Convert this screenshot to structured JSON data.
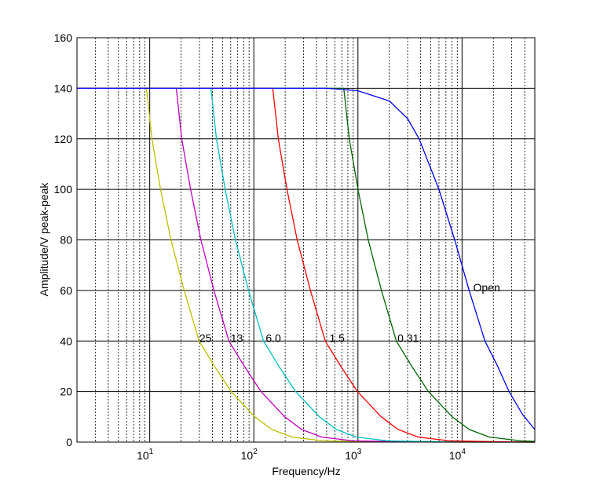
{
  "chart_data": {
    "type": "line",
    "title": "",
    "xlabel": "Frequency/Hz",
    "ylabel": "Amplitude/V peak-peak",
    "xscale": "log",
    "xlim": [
      2,
      50000
    ],
    "ylim": [
      0,
      160
    ],
    "grid": "on (solid major, dotted minor on x)",
    "x_ticks": [
      {
        "value": 10,
        "base": "10",
        "exp": "1"
      },
      {
        "value": 100,
        "base": "10",
        "exp": "2"
      },
      {
        "value": 1000,
        "base": "10",
        "exp": "3"
      },
      {
        "value": 10000,
        "base": "10",
        "exp": "4"
      }
    ],
    "y_ticks": [
      0,
      20,
      40,
      60,
      80,
      100,
      120,
      140,
      160
    ],
    "series": [
      {
        "label": "25",
        "color": "#bfbf00",
        "points": [
          [
            2,
            140
          ],
          [
            9.3,
            140
          ],
          [
            10.5,
            120
          ],
          [
            12.7,
            100
          ],
          [
            16,
            80
          ],
          [
            21.4,
            60
          ],
          [
            29.8,
            40
          ],
          [
            41.9,
            30
          ],
          [
            60.5,
            20
          ],
          [
            102,
            10
          ],
          [
            149,
            5
          ],
          [
            233,
            2
          ],
          [
            465,
            0.5
          ],
          [
            2000,
            0.05
          ],
          [
            50000,
            0
          ]
        ]
      },
      {
        "label": "13",
        "color": "#bf00bf",
        "points": [
          [
            2,
            140
          ],
          [
            18,
            140
          ],
          [
            20.3,
            120
          ],
          [
            24.7,
            100
          ],
          [
            31,
            80
          ],
          [
            41.4,
            60
          ],
          [
            57.6,
            40
          ],
          [
            81,
            30
          ],
          [
            117,
            20
          ],
          [
            198,
            10
          ],
          [
            288,
            5
          ],
          [
            450,
            2
          ],
          [
            900,
            0.5
          ],
          [
            4000,
            0.05
          ],
          [
            50000,
            0
          ]
        ]
      },
      {
        "label": "6.0",
        "color": "#00bfbf",
        "points": [
          [
            2,
            140
          ],
          [
            38.7,
            140
          ],
          [
            43.7,
            120
          ],
          [
            53,
            100
          ],
          [
            66.6,
            80
          ],
          [
            89,
            60
          ],
          [
            124,
            40
          ],
          [
            174,
            30
          ],
          [
            252,
            20
          ],
          [
            426,
            10
          ],
          [
            619,
            5
          ],
          [
            968,
            2
          ],
          [
            1935,
            0.5
          ],
          [
            8000,
            0.05
          ],
          [
            50000,
            0
          ]
        ]
      },
      {
        "label": "1.5",
        "color": "#ff0000",
        "points": [
          [
            2,
            140
          ],
          [
            152,
            140
          ],
          [
            172,
            120
          ],
          [
            208,
            100
          ],
          [
            261,
            80
          ],
          [
            350,
            60
          ],
          [
            486,
            40
          ],
          [
            684,
            30
          ],
          [
            988,
            20
          ],
          [
            1672,
            10
          ],
          [
            2432,
            5
          ],
          [
            3800,
            2
          ],
          [
            7600,
            0.5
          ],
          [
            30000,
            0.05
          ],
          [
            50000,
            0
          ]
        ]
      },
      {
        "label": "0.31",
        "color": "#006400",
        "points": [
          [
            2,
            140
          ],
          [
            731,
            140
          ],
          [
            826,
            120
          ],
          [
            1001,
            100
          ],
          [
            1257,
            80
          ],
          [
            1681,
            60
          ],
          [
            2339,
            40
          ],
          [
            3290,
            30
          ],
          [
            4752,
            20
          ],
          [
            8041,
            10
          ],
          [
            11700,
            5
          ],
          [
            18275,
            2
          ],
          [
            36550,
            0.5
          ],
          [
            50000,
            0.3
          ]
        ]
      },
      {
        "label": "Open",
        "color": "#0000ff",
        "points": [
          [
            2,
            140
          ],
          [
            500,
            140
          ],
          [
            1000,
            139
          ],
          [
            2000,
            135
          ],
          [
            3000,
            128
          ],
          [
            3870,
            120
          ],
          [
            6000,
            100
          ],
          [
            8500,
            80
          ],
          [
            11700,
            60
          ],
          [
            16600,
            40
          ],
          [
            22000,
            30
          ],
          [
            28300,
            20
          ],
          [
            38000,
            11
          ],
          [
            50000,
            5
          ]
        ]
      }
    ],
    "annotations": [
      {
        "text": "25",
        "x": 30,
        "y": 40
      },
      {
        "text": "13",
        "x": 60,
        "y": 40
      },
      {
        "text": "6.0",
        "x": 130,
        "y": 40
      },
      {
        "text": "1.5",
        "x": 532,
        "y": 40
      },
      {
        "text": "0.31",
        "x": 2400,
        "y": 40
      },
      {
        "text": "Open",
        "x": 12800,
        "y": 60
      }
    ]
  }
}
